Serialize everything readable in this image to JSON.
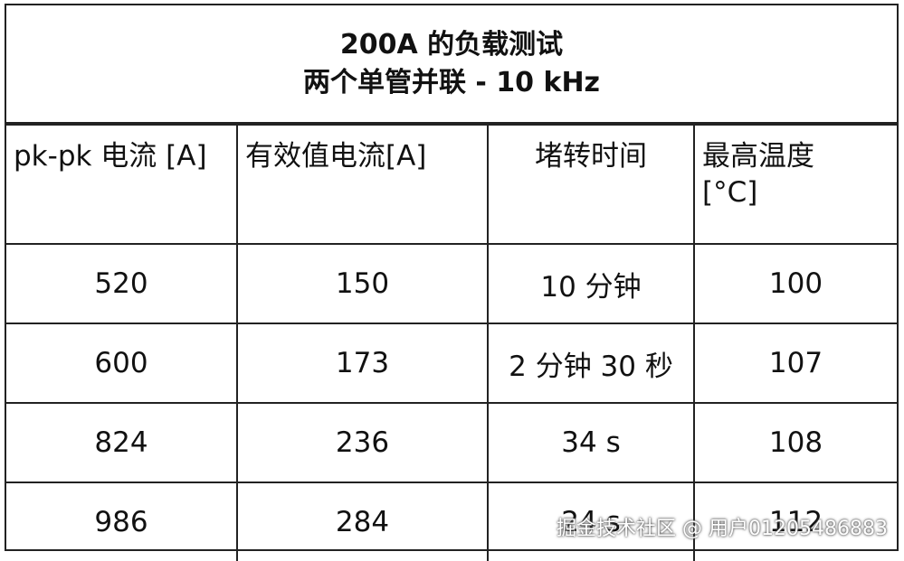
{
  "title": [
    "200A  的负载测试",
    "两个单管并联  - 10 kHz"
  ],
  "table": {
    "header": [
      "pk-pk  电流  [A]",
      "有效值电流[A]",
      "堵转时间",
      [
        "最高温度",
        "[°C]"
      ]
    ],
    "rows": [
      [
        520,
        150,
        "10  分钟",
        100
      ],
      [
        600,
        173,
        "2 分钟 30 秒",
        107
      ],
      [
        824,
        236,
        "34 s",
        108
      ],
      [
        986,
        284,
        "24 s",
        112
      ]
    ]
  },
  "watermark": "掘金技术社区 @ 用户01205486883"
}
